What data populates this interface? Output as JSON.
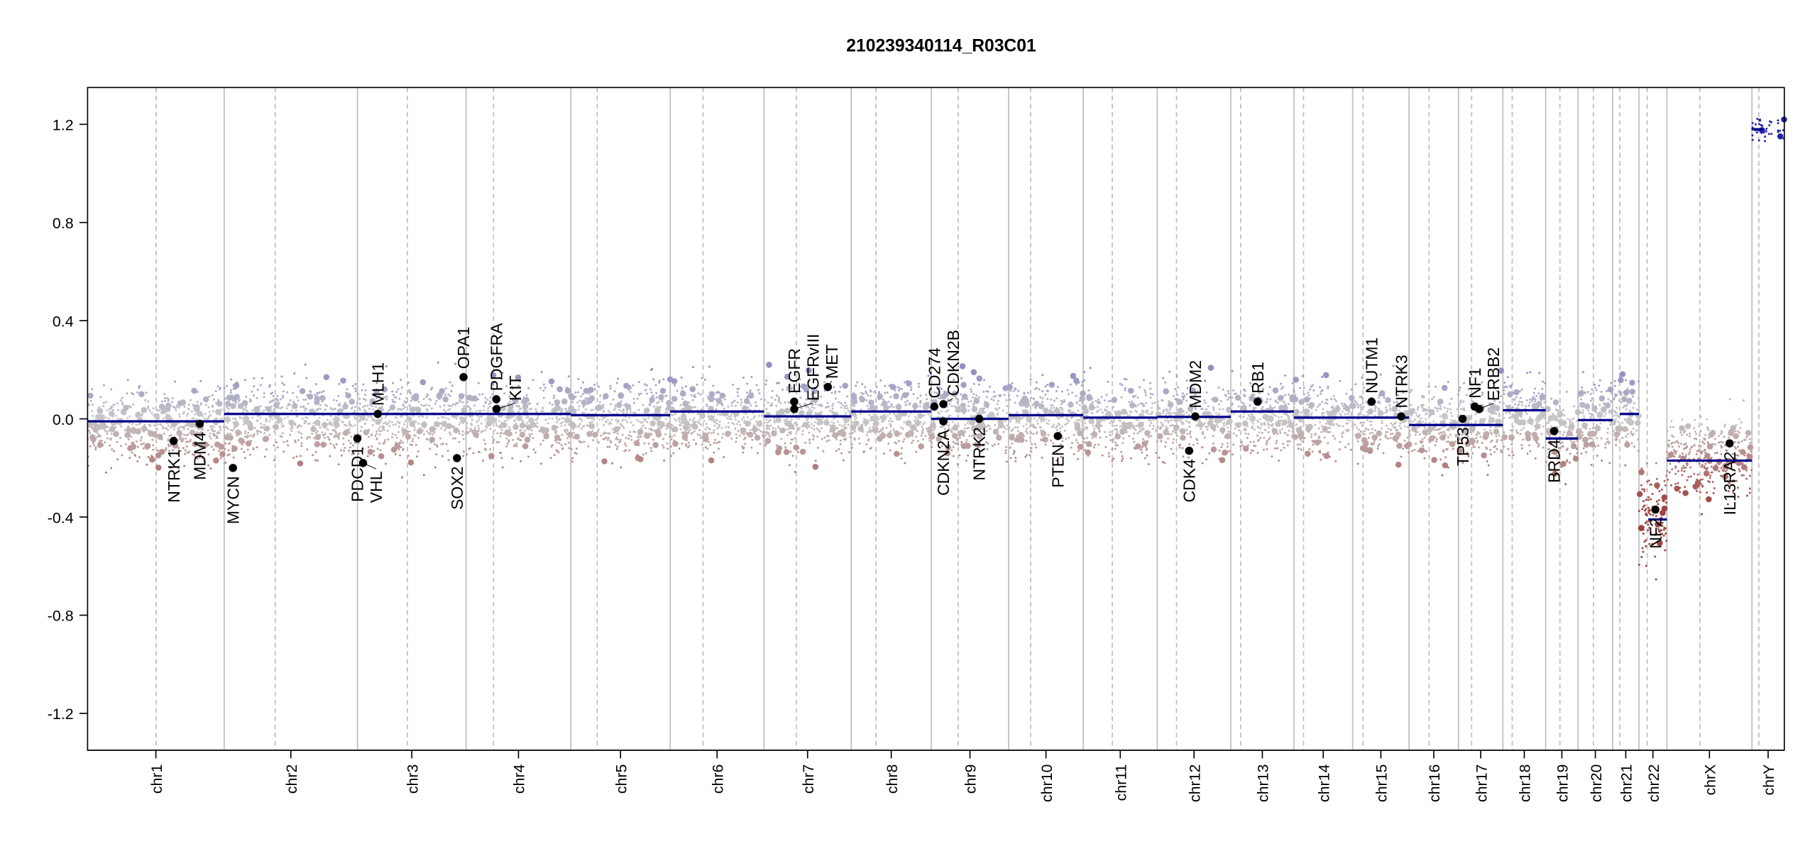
{
  "chart_data": {
    "type": "scatter",
    "title": "210239340114_R03C01",
    "xlabel": "",
    "ylabel": "",
    "ylim": [
      -1.35,
      1.35
    ],
    "yticks": [
      "1.2",
      "0.8",
      "0.4",
      "0.0",
      "-0.4",
      "-0.8",
      "-1.2"
    ],
    "ytick_values": [
      1.2,
      0.8,
      0.4,
      0.0,
      -0.4,
      -0.8,
      -1.2
    ],
    "colors": {
      "gain": "#8f8fc4",
      "neutral": "#c8c8c8",
      "loss": "#a04040",
      "segment": "#00008b",
      "gene": "#000000"
    },
    "chromosomes": [
      {
        "name": "chr1",
        "length_mb": 249,
        "centromere_mb": 125,
        "segments": [
          {
            "start": 0,
            "end": 249,
            "value": -0.01
          }
        ],
        "bias": -0.03
      },
      {
        "name": "chr2",
        "length_mb": 243,
        "centromere_mb": 93,
        "segments": [
          {
            "start": 0,
            "end": 243,
            "value": 0.02
          }
        ],
        "bias": 0.0
      },
      {
        "name": "chr3",
        "length_mb": 198,
        "centromere_mb": 91,
        "segments": [
          {
            "start": 0,
            "end": 198,
            "value": 0.02
          }
        ],
        "bias": 0.0
      },
      {
        "name": "chr4",
        "length_mb": 191,
        "centromere_mb": 50,
        "segments": [
          {
            "start": 0,
            "end": 191,
            "value": 0.02
          }
        ],
        "bias": 0.0
      },
      {
        "name": "chr5",
        "length_mb": 181,
        "centromere_mb": 48,
        "segments": [
          {
            "start": 0,
            "end": 181,
            "value": 0.015
          }
        ],
        "bias": 0.0
      },
      {
        "name": "chr6",
        "length_mb": 171,
        "centromere_mb": 60,
        "segments": [
          {
            "start": 0,
            "end": 171,
            "value": 0.03
          }
        ],
        "bias": 0.01
      },
      {
        "name": "chr7",
        "length_mb": 159,
        "centromere_mb": 59,
        "segments": [
          {
            "start": 0,
            "end": 159,
            "value": 0.01
          }
        ],
        "bias": 0.0
      },
      {
        "name": "chr8",
        "length_mb": 146,
        "centromere_mb": 45,
        "segments": [
          {
            "start": 0,
            "end": 146,
            "value": 0.03
          }
        ],
        "bias": 0.01
      },
      {
        "name": "chr9",
        "length_mb": 141,
        "centromere_mb": 49,
        "segments": [
          {
            "start": 0,
            "end": 141,
            "value": 0.0
          }
        ],
        "bias": 0.0
      },
      {
        "name": "chr10",
        "length_mb": 136,
        "centromere_mb": 40,
        "segments": [
          {
            "start": 0,
            "end": 136,
            "value": 0.015
          }
        ],
        "bias": 0.0
      },
      {
        "name": "chr11",
        "length_mb": 135,
        "centromere_mb": 53,
        "segments": [
          {
            "start": 0,
            "end": 135,
            "value": 0.005
          }
        ],
        "bias": 0.0
      },
      {
        "name": "chr12",
        "length_mb": 134,
        "centromere_mb": 35,
        "segments": [
          {
            "start": 0,
            "end": 134,
            "value": 0.008
          }
        ],
        "bias": 0.0
      },
      {
        "name": "chr13",
        "length_mb": 115,
        "centromere_mb": 17.9,
        "segments": [
          {
            "start": 0,
            "end": 115,
            "value": 0.03
          }
        ],
        "bias": 0.01
      },
      {
        "name": "chr14",
        "length_mb": 107,
        "centromere_mb": 17.6,
        "segments": [
          {
            "start": 0,
            "end": 107,
            "value": 0.005
          }
        ],
        "bias": 0.0
      },
      {
        "name": "chr15",
        "length_mb": 103,
        "centromere_mb": 19,
        "segments": [
          {
            "start": 0,
            "end": 103,
            "value": 0.005
          }
        ],
        "bias": 0.0
      },
      {
        "name": "chr16",
        "length_mb": 90,
        "centromere_mb": 36.6,
        "segments": [
          {
            "start": 0,
            "end": 90,
            "value": -0.025
          }
        ],
        "bias": -0.02
      },
      {
        "name": "chr17",
        "length_mb": 81,
        "centromere_mb": 24,
        "segments": [
          {
            "start": 0,
            "end": 81,
            "value": -0.025
          }
        ],
        "bias": -0.02
      },
      {
        "name": "chr18",
        "length_mb": 78,
        "centromere_mb": 17,
        "segments": [
          {
            "start": 0,
            "end": 78,
            "value": 0.035
          }
        ],
        "bias": 0.02
      },
      {
        "name": "chr19",
        "length_mb": 59,
        "centromere_mb": 26,
        "segments": [
          {
            "start": 0,
            "end": 59,
            "value": -0.08
          }
        ],
        "bias": -0.06
      },
      {
        "name": "chr20",
        "length_mb": 63,
        "centromere_mb": 28,
        "segments": [
          {
            "start": 0,
            "end": 63,
            "value": -0.005
          }
        ],
        "bias": 0.0
      },
      {
        "name": "chr21",
        "length_mb": 48,
        "centromere_mb": 13,
        "segments": [
          {
            "start": 13,
            "end": 48,
            "value": 0.02
          }
        ],
        "bias": 0.02
      },
      {
        "name": "chr22",
        "length_mb": 51,
        "centromere_mb": 15,
        "segments": [
          {
            "start": 17,
            "end": 51,
            "value": -0.41
          }
        ],
        "bias": -0.38
      },
      {
        "name": "chrX",
        "length_mb": 155,
        "centromere_mb": 60,
        "segments": [
          {
            "start": 0,
            "end": 155,
            "value": -0.17
          }
        ],
        "bias": -0.15
      },
      {
        "name": "chrY",
        "length_mb": 59,
        "centromere_mb": 12.5,
        "segments": [
          {
            "start": 0,
            "end": 20,
            "value": 1.18
          }
        ],
        "bias": 1.18
      }
    ],
    "genes": [
      {
        "name": "NTRK1",
        "chr": "chr1",
        "pos_mb": 156.8,
        "value": -0.09
      },
      {
        "name": "MDM4",
        "chr": "chr1",
        "pos_mb": 204.5,
        "value": -0.02
      },
      {
        "name": "MYCN",
        "chr": "chr2",
        "pos_mb": 16.0,
        "value": -0.2
      },
      {
        "name": "PDCD1",
        "chr": "chr2",
        "pos_mb": 242.8,
        "value": -0.08
      },
      {
        "name": "VHL",
        "chr": "chr3",
        "pos_mb": 10.2,
        "value": -0.18
      },
      {
        "name": "MLH1",
        "chr": "chr3",
        "pos_mb": 37.0,
        "value": 0.02
      },
      {
        "name": "SOX2",
        "chr": "chr3",
        "pos_mb": 181.4,
        "value": -0.16
      },
      {
        "name": "OPA1",
        "chr": "chr3",
        "pos_mb": 193.3,
        "value": 0.17
      },
      {
        "name": "PDGFRA",
        "chr": "chr4",
        "pos_mb": 55.1,
        "value": 0.08
      },
      {
        "name": "KIT",
        "chr": "chr4",
        "pos_mb": 55.5,
        "value": 0.04
      },
      {
        "name": "EGFR",
        "chr": "chr7",
        "pos_mb": 55.1,
        "value": 0.07
      },
      {
        "name": "EGFRvIII",
        "chr": "chr7",
        "pos_mb": 55.2,
        "value": 0.04
      },
      {
        "name": "MET",
        "chr": "chr7",
        "pos_mb": 116.4,
        "value": 0.13
      },
      {
        "name": "CD274",
        "chr": "chr9",
        "pos_mb": 5.5,
        "value": 0.05
      },
      {
        "name": "CDKN2A",
        "chr": "chr9",
        "pos_mb": 21.97,
        "value": -0.01
      },
      {
        "name": "CDKN2B",
        "chr": "chr9",
        "pos_mb": 22.0,
        "value": 0.06
      },
      {
        "name": "NTRK2",
        "chr": "chr9",
        "pos_mb": 87.3,
        "value": 0.0
      },
      {
        "name": "PTEN",
        "chr": "chr10",
        "pos_mb": 89.6,
        "value": -0.07
      },
      {
        "name": "CDK4",
        "chr": "chr12",
        "pos_mb": 58.1,
        "value": -0.13
      },
      {
        "name": "MDM2",
        "chr": "chr12",
        "pos_mb": 69.2,
        "value": 0.01
      },
      {
        "name": "RB1",
        "chr": "chr13",
        "pos_mb": 48.9,
        "value": 0.07
      },
      {
        "name": "NUTM1",
        "chr": "chr15",
        "pos_mb": 34.6,
        "value": 0.07
      },
      {
        "name": "NTRK3",
        "chr": "chr15",
        "pos_mb": 88.6,
        "value": 0.01
      },
      {
        "name": "TP53",
        "chr": "chr17",
        "pos_mb": 7.5,
        "value": 0.0
      },
      {
        "name": "NF1",
        "chr": "chr17",
        "pos_mb": 29.5,
        "value": 0.05
      },
      {
        "name": "ERBB2",
        "chr": "chr17",
        "pos_mb": 37.8,
        "value": 0.04
      },
      {
        "name": "BRD4",
        "chr": "chr19",
        "pos_mb": 15.4,
        "value": -0.05
      },
      {
        "name": "NF2",
        "chr": "chr22",
        "pos_mb": 30.0,
        "value": -0.37
      },
      {
        "name": "IL13RA2",
        "chr": "chrX",
        "pos_mb": 114.3,
        "value": -0.1
      }
    ]
  }
}
